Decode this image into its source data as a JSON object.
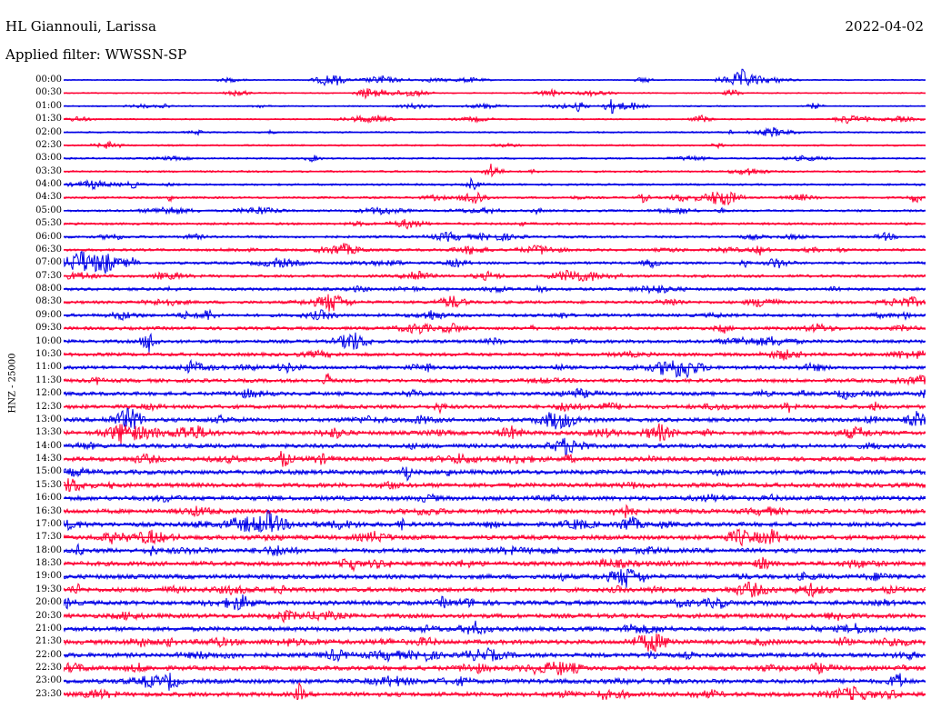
{
  "header": {
    "title": "HL Giannouli, Larissa",
    "date": "2022-04-02",
    "filter": "Applied filter: WWSSN-SP"
  },
  "channel_label": "HNZ - 25000",
  "colors": {
    "trace_a": "#0000e6",
    "trace_b": "#ff0033"
  },
  "rows": [
    {
      "time": "00:00"
    },
    {
      "time": "00:30"
    },
    {
      "time": "01:00"
    },
    {
      "time": "01:30"
    },
    {
      "time": "02:00"
    },
    {
      "time": "02:30"
    },
    {
      "time": "03:00"
    },
    {
      "time": "03:30"
    },
    {
      "time": "04:00"
    },
    {
      "time": "04:30"
    },
    {
      "time": "05:00"
    },
    {
      "time": "05:30"
    },
    {
      "time": "06:00"
    },
    {
      "time": "06:30"
    },
    {
      "time": "07:00"
    },
    {
      "time": "07:30"
    },
    {
      "time": "08:00"
    },
    {
      "time": "08:30"
    },
    {
      "time": "09:00"
    },
    {
      "time": "09:30"
    },
    {
      "time": "10:00"
    },
    {
      "time": "10:30"
    },
    {
      "time": "11:00"
    },
    {
      "time": "11:30"
    },
    {
      "time": "12:00"
    },
    {
      "time": "12:30"
    },
    {
      "time": "13:00"
    },
    {
      "time": "13:30"
    },
    {
      "time": "14:00"
    },
    {
      "time": "14:30"
    },
    {
      "time": "15:00"
    },
    {
      "time": "15:30"
    },
    {
      "time": "16:00"
    },
    {
      "time": "16:30"
    },
    {
      "time": "17:00"
    },
    {
      "time": "17:30"
    },
    {
      "time": "18:00"
    },
    {
      "time": "18:30"
    },
    {
      "time": "19:00"
    },
    {
      "time": "19:30"
    },
    {
      "time": "20:00"
    },
    {
      "time": "20:30"
    },
    {
      "time": "21:00"
    },
    {
      "time": "21:30"
    },
    {
      "time": "22:00"
    },
    {
      "time": "22:30"
    },
    {
      "time": "23:00"
    },
    {
      "time": "23:30"
    }
  ]
}
